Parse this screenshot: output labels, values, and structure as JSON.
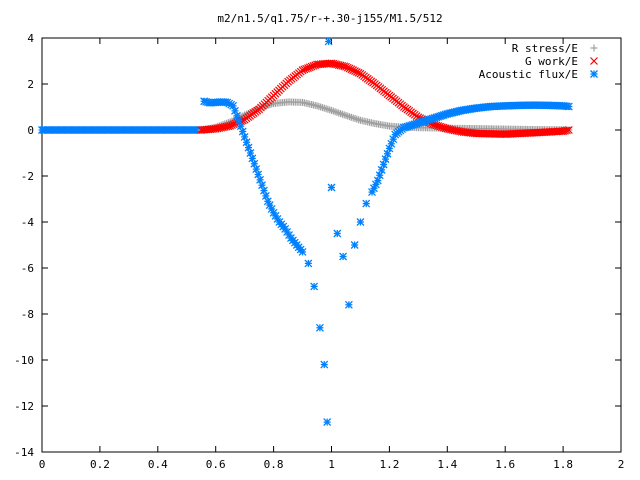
{
  "chart_data": {
    "type": "scatter",
    "title": "m2/n1.5/q1.75/r-+.30-j155/M1.5/512",
    "xlabel": "",
    "ylabel": "",
    "xlim": [
      0,
      2
    ],
    "ylim": [
      -14,
      4
    ],
    "x_ticks": [
      "0",
      "0.2",
      "0.4",
      "0.6",
      "0.8",
      "1",
      "1.2",
      "1.4",
      "1.6",
      "1.8",
      "2"
    ],
    "y_ticks": [
      "4",
      "2",
      "0",
      "-2",
      "-4",
      "-6",
      "-8",
      "-10",
      "-12",
      "-14"
    ],
    "grid": false,
    "legend_position": "top-right",
    "x_range": [
      0.0,
      1.82
    ],
    "series": [
      {
        "name": "R stress/E",
        "marker": "plus",
        "color": "#a0a0a0",
        "points": [
          [
            0.55,
            0.0
          ],
          [
            0.6,
            0.12
          ],
          [
            0.65,
            0.35
          ],
          [
            0.7,
            0.65
          ],
          [
            0.75,
            0.95
          ],
          [
            0.8,
            1.15
          ],
          [
            0.85,
            1.22
          ],
          [
            0.9,
            1.2
          ],
          [
            0.95,
            1.05
          ],
          [
            1.0,
            0.85
          ],
          [
            1.05,
            0.63
          ],
          [
            1.1,
            0.42
          ],
          [
            1.15,
            0.28
          ],
          [
            1.2,
            0.17
          ],
          [
            1.25,
            0.12
          ],
          [
            1.3,
            0.1
          ],
          [
            1.35,
            0.09
          ],
          [
            1.4,
            0.08
          ],
          [
            1.5,
            0.06
          ],
          [
            1.6,
            0.04
          ],
          [
            1.7,
            0.02
          ],
          [
            1.8,
            0.01
          ],
          [
            1.82,
            0.0
          ]
        ]
      },
      {
        "name": "G work/E",
        "marker": "cross",
        "color": "#ff0000",
        "points": [
          [
            0.55,
            0.0
          ],
          [
            0.6,
            0.05
          ],
          [
            0.65,
            0.18
          ],
          [
            0.7,
            0.45
          ],
          [
            0.75,
            0.9
          ],
          [
            0.8,
            1.5
          ],
          [
            0.85,
            2.1
          ],
          [
            0.9,
            2.6
          ],
          [
            0.95,
            2.85
          ],
          [
            1.0,
            2.9
          ],
          [
            1.05,
            2.75
          ],
          [
            1.1,
            2.45
          ],
          [
            1.15,
            2.0
          ],
          [
            1.2,
            1.5
          ],
          [
            1.25,
            1.0
          ],
          [
            1.3,
            0.55
          ],
          [
            1.35,
            0.25
          ],
          [
            1.4,
            0.05
          ],
          [
            1.45,
            -0.08
          ],
          [
            1.5,
            -0.15
          ],
          [
            1.6,
            -0.18
          ],
          [
            1.7,
            -0.12
          ],
          [
            1.8,
            -0.05
          ],
          [
            1.82,
            0.0
          ]
        ]
      },
      {
        "name": "Acoustic flux/E",
        "marker": "star",
        "color": "#0080ff",
        "points": [
          [
            0.56,
            1.25
          ],
          [
            0.58,
            1.18
          ],
          [
            0.6,
            1.2
          ],
          [
            0.62,
            1.22
          ],
          [
            0.64,
            1.2
          ],
          [
            0.66,
            1.05
          ],
          [
            0.68,
            0.4
          ],
          [
            0.7,
            -0.3
          ],
          [
            0.72,
            -1.0
          ],
          [
            0.74,
            -1.7
          ],
          [
            0.76,
            -2.4
          ],
          [
            0.78,
            -3.1
          ],
          [
            0.8,
            -3.6
          ],
          [
            0.82,
            -4.0
          ],
          [
            0.84,
            -4.3
          ],
          [
            0.86,
            -4.7
          ],
          [
            0.88,
            -5.0
          ],
          [
            0.9,
            -5.3
          ],
          [
            0.92,
            -5.8
          ],
          [
            0.94,
            -6.8
          ],
          [
            0.96,
            -8.6
          ],
          [
            0.975,
            -10.2
          ],
          [
            0.985,
            -12.7
          ],
          [
            0.99,
            3.85
          ],
          [
            1.0,
            -2.5
          ],
          [
            1.02,
            -4.5
          ],
          [
            1.04,
            -5.5
          ],
          [
            1.06,
            -7.6
          ],
          [
            1.08,
            -5.0
          ],
          [
            1.1,
            -4.0
          ],
          [
            1.12,
            -3.2
          ],
          [
            1.14,
            -2.7
          ],
          [
            1.16,
            -2.2
          ],
          [
            1.18,
            -1.5
          ],
          [
            1.2,
            -0.8
          ],
          [
            1.22,
            -0.2
          ],
          [
            1.25,
            0.1
          ],
          [
            1.3,
            0.3
          ],
          [
            1.35,
            0.5
          ],
          [
            1.4,
            0.7
          ],
          [
            1.45,
            0.85
          ],
          [
            1.5,
            0.95
          ],
          [
            1.55,
            1.02
          ],
          [
            1.6,
            1.05
          ],
          [
            1.65,
            1.07
          ],
          [
            1.7,
            1.08
          ],
          [
            1.75,
            1.07
          ],
          [
            1.8,
            1.05
          ],
          [
            1.82,
            1.02
          ]
        ]
      }
    ],
    "flat_blue_segment": [
      0.0,
      0.55,
      0.0
    ]
  }
}
